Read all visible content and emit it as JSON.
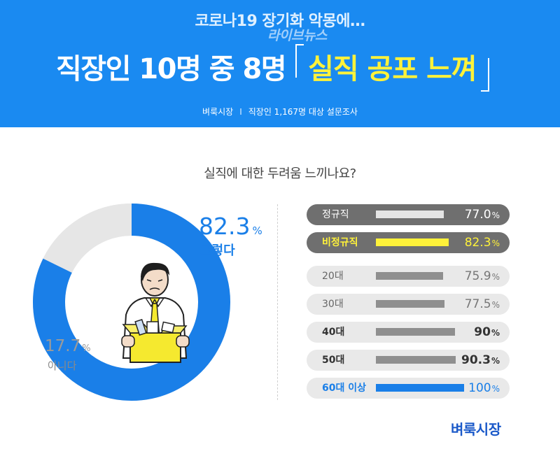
{
  "header": {
    "subtitle": "코로나19 장기화 악몽에…",
    "watermark": "라이브뉴스",
    "headline_white": "직장인 10명 중 8명",
    "headline_yellow": "실직 공포 느껴",
    "source_left": "벼룩시장",
    "source_sep": "I",
    "source_right": "직장인 1,167명 대상 설문조사"
  },
  "colors": {
    "header_bg": "#1a8af1",
    "accent_blue": "#1a7fe8",
    "highlight_yellow": "#fff23a",
    "dark_pill": "#6f6f6f",
    "light_pill": "#e9e9e9",
    "grey_bar": "#8f8f8f"
  },
  "chart_data": [
    {
      "type": "pie",
      "title": "실직에 대한 두려움 느끼나요?",
      "unit": "%",
      "slices": [
        {
          "label": "그렇다",
          "value": 82.3,
          "color": "#1a7fe8"
        },
        {
          "label": "아니다",
          "value": 17.7,
          "color": "#e6e6e6"
        }
      ]
    },
    {
      "type": "bar",
      "unit": "%",
      "xlim": [
        0,
        100
      ],
      "rows": [
        {
          "label": "정규직",
          "value": 77.0,
          "display": "77.0",
          "style": "dark"
        },
        {
          "label": "비정규직",
          "value": 82.3,
          "display": "82.3",
          "style": "dark-highlight"
        },
        {
          "label": "20대",
          "value": 75.9,
          "display": "75.9",
          "style": "light"
        },
        {
          "label": "30대",
          "value": 77.5,
          "display": "77.5",
          "style": "light"
        },
        {
          "label": "40대",
          "value": 90,
          "display": "90",
          "style": "light"
        },
        {
          "label": "50대",
          "value": 90.3,
          "display": "90.3",
          "style": "light"
        },
        {
          "label": "60대 이상",
          "value": 100,
          "display": "100",
          "style": "light-highlight"
        }
      ]
    }
  ],
  "footer": {
    "brand": "벼룩시장"
  }
}
